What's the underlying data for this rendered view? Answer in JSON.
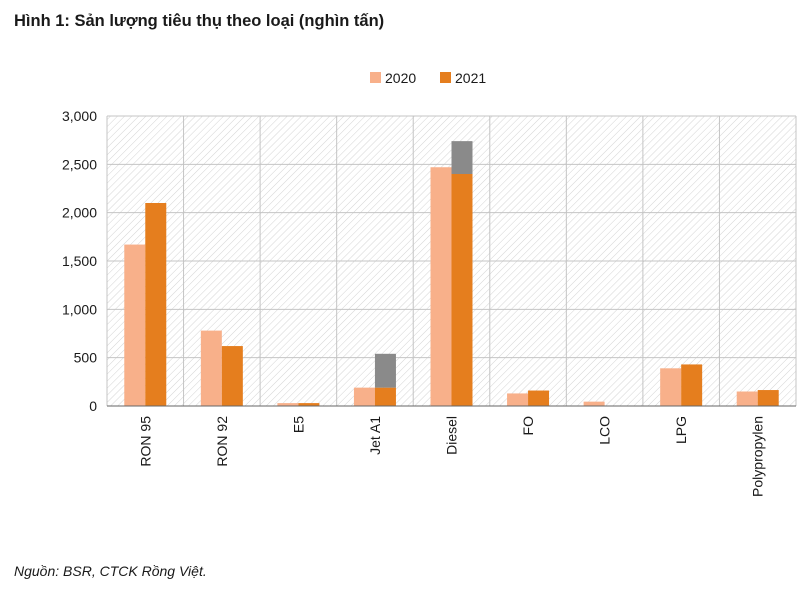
{
  "title": "Hình 1: Sản lượng tiêu thụ theo loại (nghìn tấn)",
  "source": "Nguồn: BSR, CTCK Rồng Việt.",
  "colors": {
    "series_2020": "#f8b08a",
    "series_2021": "#e57e1e",
    "overlay": "#8a8a8a",
    "grid_hatch": "#d4d4d4",
    "axis": "#666666"
  },
  "chart_data": {
    "type": "bar",
    "title": "",
    "xlabel": "",
    "ylabel": "",
    "ylim": [
      0,
      3000
    ],
    "yticks": [
      0,
      500,
      1000,
      1500,
      2000,
      2500,
      3000
    ],
    "ytick_labels": [
      "0",
      "500",
      "1,000",
      "1,500",
      "2,000",
      "2,500",
      "3,000"
    ],
    "grid": true,
    "legend_position": "top-center",
    "categories": [
      "RON 95",
      "RON 92",
      "E5",
      "Jet A1",
      "Diesel",
      "FO",
      "LCO",
      "LPG",
      "Polypropylen"
    ],
    "series": [
      {
        "name": "2020",
        "values": [
          1670,
          780,
          30,
          190,
          2470,
          130,
          45,
          390,
          150
        ]
      },
      {
        "name": "2021",
        "values": [
          2100,
          620,
          30,
          190,
          2400,
          160,
          0,
          430,
          165
        ]
      }
    ],
    "overlay_2021_top": [
      null,
      null,
      null,
      540,
      2740,
      null,
      null,
      null,
      null
    ]
  }
}
